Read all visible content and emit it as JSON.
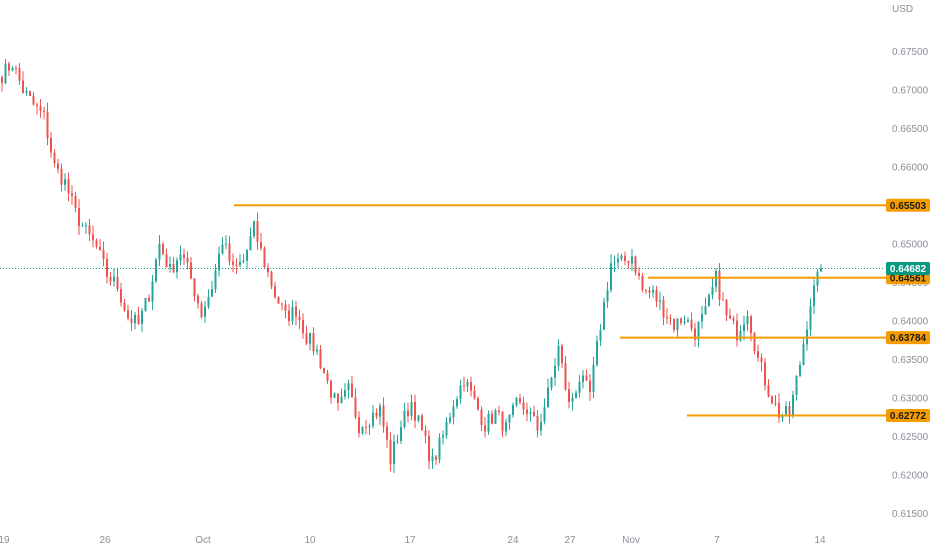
{
  "chart_data": {
    "type": "candlestick",
    "symbol_currency": "USD",
    "x_ticks": [
      "19",
      "26",
      "Oct",
      "10",
      "17",
      "24",
      "27",
      "Nov",
      "7",
      "14"
    ],
    "y_ticks": [
      "0.67500",
      "0.67000",
      "0.66500",
      "0.66000",
      "0.65500",
      "0.65000",
      "0.64500",
      "0.64000",
      "0.63500",
      "0.63000",
      "0.62500",
      "0.62000",
      "0.61500"
    ],
    "ylim": [
      0.6117,
      0.6817
    ],
    "last_price": {
      "value": 0.64682,
      "label": "0.64682"
    },
    "levels": [
      {
        "value": 0.65503,
        "label": "0.65503"
      },
      {
        "value": 0.64561,
        "label": "0.64561"
      },
      {
        "value": 0.63784,
        "label": "0.63784"
      },
      {
        "value": 0.62772,
        "label": "0.62772"
      }
    ],
    "colors": {
      "up": "#26a69a",
      "down": "#ef5350",
      "level": "#f59d00",
      "last": "#089981",
      "axis_text": "#8a8e97"
    },
    "path": [
      0.672,
      0.6735,
      0.67,
      0.668,
      0.6665,
      0.66,
      0.658,
      0.654,
      0.6515,
      0.6495,
      0.646,
      0.6445,
      0.6405,
      0.6395,
      0.6435,
      0.65,
      0.6465,
      0.649,
      0.6455,
      0.641,
      0.6445,
      0.6505,
      0.6465,
      0.6478,
      0.652,
      0.6475,
      0.6435,
      0.6405,
      0.6415,
      0.638,
      0.636,
      0.632,
      0.6285,
      0.631,
      0.6265,
      0.6275,
      0.6285,
      0.622,
      0.6265,
      0.6295,
      0.6255,
      0.6215,
      0.625,
      0.6295,
      0.6325,
      0.6295,
      0.6265,
      0.628,
      0.626,
      0.629,
      0.6285,
      0.626,
      0.6305,
      0.6365,
      0.629,
      0.6325,
      0.6305,
      0.6395,
      0.6475,
      0.6475,
      0.6485,
      0.644,
      0.6435,
      0.6415,
      0.6395,
      0.6405,
      0.6385,
      0.641,
      0.6455,
      0.6405,
      0.6385,
      0.6415,
      0.635,
      0.631,
      0.628,
      0.6278,
      0.6345,
      0.6425,
      0.6468
    ]
  }
}
